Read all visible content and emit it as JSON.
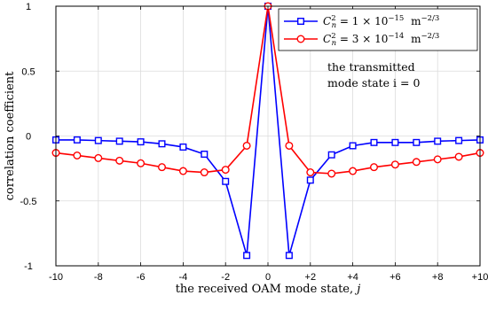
{
  "chart_data": {
    "type": "line",
    "xlabel": "the received OAM mode state, j",
    "ylabel": "correlation coefficient",
    "xlim": [
      -10,
      10
    ],
    "ylim": [
      -1,
      1
    ],
    "grid": true,
    "legend_position": "top-right",
    "x_ticks": [
      -10,
      -8,
      -6,
      -4,
      -2,
      0,
      2,
      4,
      6,
      8,
      10
    ],
    "x_tick_labels": [
      "-10",
      "-8",
      "-6",
      "-4",
      "-2",
      "0",
      "+2",
      "+4",
      "+6",
      "+8",
      "+10"
    ],
    "y_ticks": [
      -1,
      -0.5,
      0,
      0.5,
      1
    ],
    "y_tick_labels": [
      "-1",
      "-0.5",
      "0",
      "0.5",
      "1"
    ],
    "x": [
      -10,
      -9,
      -8,
      -7,
      -6,
      -5,
      -4,
      -3,
      -2,
      -1,
      0,
      1,
      2,
      3,
      4,
      5,
      6,
      7,
      8,
      9,
      10
    ],
    "series": [
      {
        "name": "C_n^2 = 1 × 10^-15 m^-2/3",
        "name_parts": {
          "base": "C",
          "sub": "n",
          "sup": "2",
          "mid": " = 1 × 10",
          "exp": "−15",
          "unit": "m",
          "unit_exp": "−2/3"
        },
        "color": "#0000ff",
        "marker": "square",
        "values": [
          -0.03,
          -0.03,
          -0.035,
          -0.04,
          -0.045,
          -0.06,
          -0.085,
          -0.14,
          -0.35,
          -0.92,
          1.0,
          -0.92,
          -0.34,
          -0.145,
          -0.075,
          -0.05,
          -0.05,
          -0.05,
          -0.04,
          -0.035,
          -0.03
        ]
      },
      {
        "name": "C_n^2 = 3 × 10^-14 m^-2/3",
        "name_parts": {
          "base": "C",
          "sub": "n",
          "sup": "2",
          "mid": " = 3 × 10",
          "exp": "−14",
          "unit": "m",
          "unit_exp": "−2/3"
        },
        "color": "#ff0000",
        "marker": "circle",
        "values": [
          -0.13,
          -0.15,
          -0.17,
          -0.19,
          -0.21,
          -0.24,
          -0.27,
          -0.28,
          -0.26,
          -0.075,
          1.0,
          -0.075,
          -0.28,
          -0.29,
          -0.27,
          -0.24,
          -0.22,
          -0.2,
          -0.18,
          -0.16,
          -0.13
        ]
      }
    ],
    "annotation": [
      "the transmitted",
      "mode state i = 0"
    ]
  }
}
